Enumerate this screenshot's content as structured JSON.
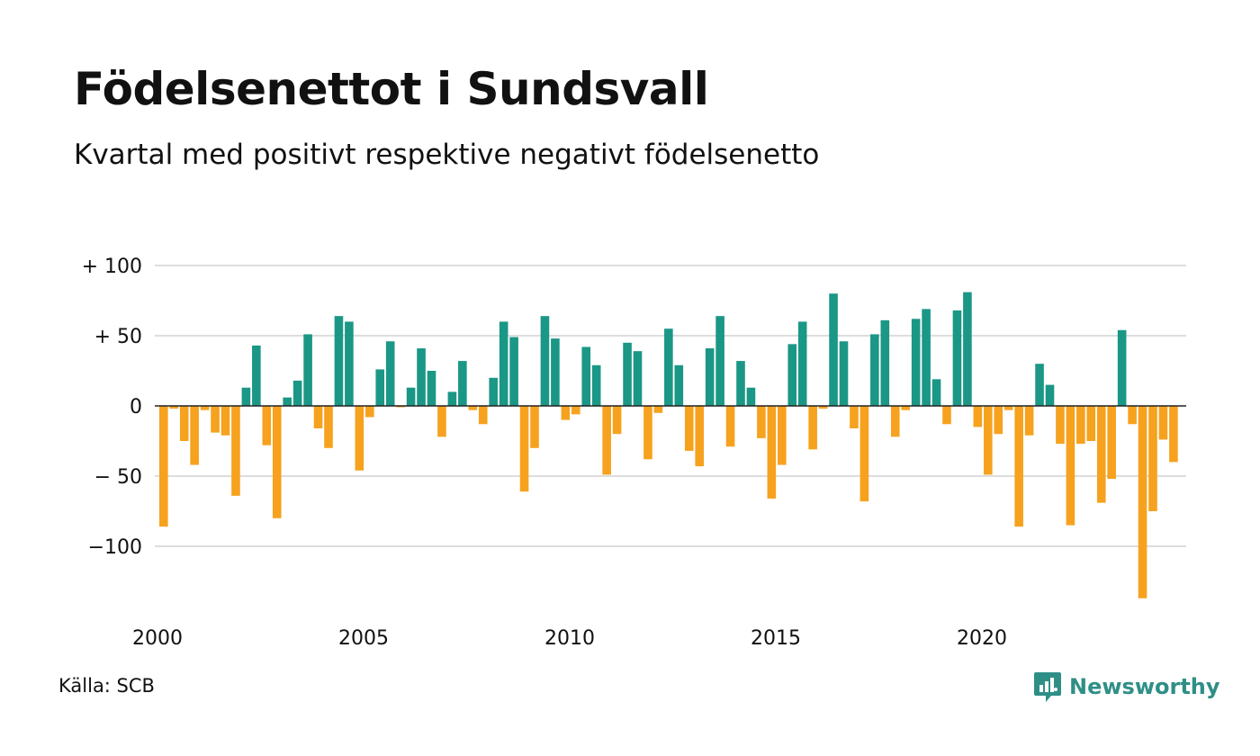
{
  "title": "Födelsenettot i Sundsvall",
  "subtitle": "Kvartal med positivt respektive negativt födelsenetto",
  "source": "Källa: SCB",
  "brand": {
    "name": "Newsworthy",
    "color": "#2f8f87",
    "icon": "newsworthy-logo-icon"
  },
  "colors": {
    "positive": "#1b9786",
    "negative": "#f6a21e",
    "grid": "#dddddd",
    "zero_line": "#222222"
  },
  "chart_data": {
    "type": "bar",
    "title": "Födelsenettot i Sundsvall",
    "subtitle": "Kvartal med positivt respektive negativt födelsenetto",
    "xlabel": "",
    "ylabel": "",
    "grid": true,
    "ylim": [
      -140,
      100
    ],
    "xlim": [
      2000,
      2025
    ],
    "y_ticks": [
      {
        "value": 100,
        "label": "+ 100"
      },
      {
        "value": 50,
        "label": "+  50"
      },
      {
        "value": 0,
        "label": "0"
      },
      {
        "value": -50,
        "label": "− 50"
      },
      {
        "value": -100,
        "label": "−100"
      }
    ],
    "x_ticks": [
      {
        "value": 2000,
        "label": "2000"
      },
      {
        "value": 2005,
        "label": "2005"
      },
      {
        "value": 2010,
        "label": "2010"
      },
      {
        "value": 2015,
        "label": "2015"
      },
      {
        "value": 2020,
        "label": "2020"
      }
    ],
    "series": [
      {
        "values": [
          -86,
          -2,
          -25,
          -42,
          -3,
          -19,
          -21,
          -64,
          13,
          43,
          -28,
          -80,
          6,
          18,
          51,
          -16,
          -30,
          64,
          60,
          -46,
          -8,
          26,
          46,
          -1,
          13,
          41,
          25,
          -22,
          10,
          32,
          -3,
          -13,
          20,
          60,
          49,
          -61,
          -30,
          64,
          48,
          -10,
          -6,
          42,
          29,
          -49,
          -20,
          45,
          39,
          -38,
          -5,
          55,
          29,
          -32,
          -43,
          41,
          64,
          -29,
          32,
          13,
          -23,
          -66,
          -42,
          44,
          60,
          -31,
          -2,
          80,
          46,
          -16,
          -68,
          51,
          61,
          -22,
          -3,
          62,
          69,
          19,
          -13,
          68,
          81,
          -15,
          -49,
          -20,
          -3,
          -86,
          -21,
          30,
          15,
          -27,
          -85,
          -27,
          -25,
          -69,
          -52,
          54,
          -13,
          -137,
          -75,
          -24,
          -40
        ]
      }
    ]
  }
}
